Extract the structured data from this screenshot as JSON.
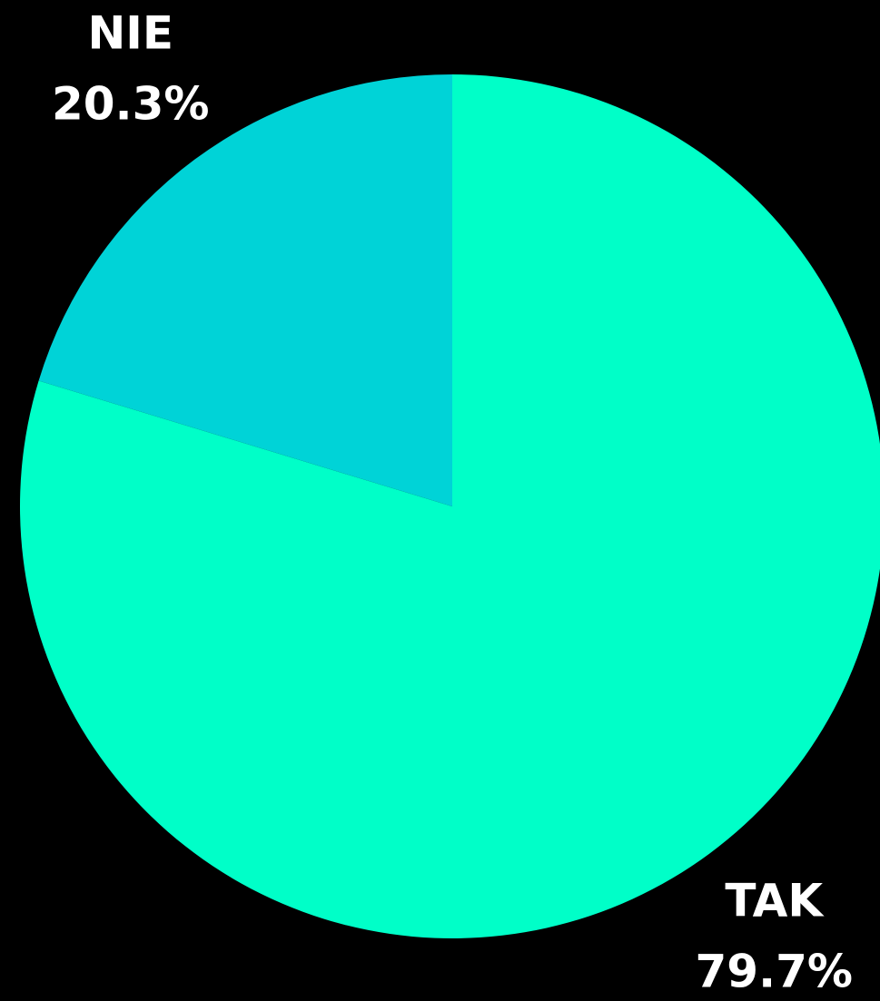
{
  "chart_data": {
    "type": "pie",
    "categories": [
      "TAK",
      "NIE"
    ],
    "values": [
      79.7,
      20.3
    ],
    "value_labels": [
      "79.7%",
      "20.3%"
    ],
    "colors": [
      "#00ffc8",
      "#00d3d7"
    ]
  }
}
